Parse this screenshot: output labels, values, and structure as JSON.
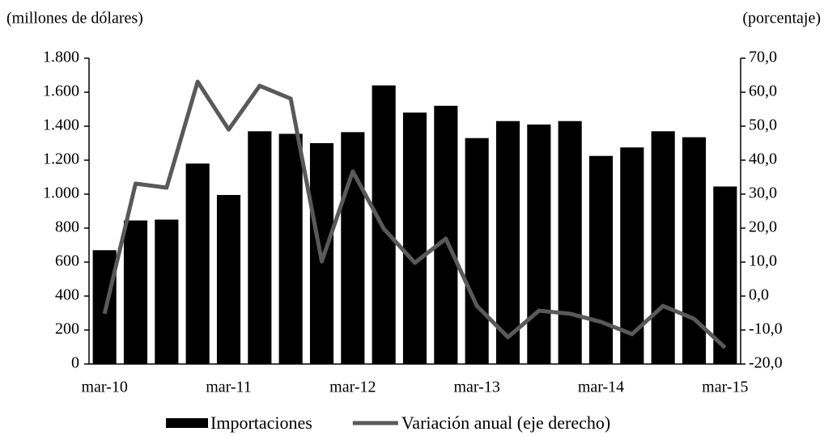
{
  "chart_data": {
    "type": "bar_line",
    "y_label": "(millones  de dólares)",
    "y2_label": "(porcentaje)",
    "categories": [
      "mar-10",
      null,
      null,
      null,
      "mar-11",
      null,
      null,
      null,
      "mar-12",
      null,
      null,
      null,
      "mar-13",
      null,
      null,
      null,
      "mar-14",
      null,
      null,
      null,
      "mar-15"
    ],
    "series": [
      {
        "name": "Importaciones",
        "type": "bar",
        "color": "#000000",
        "values": [
          670,
          845,
          850,
          1180,
          995,
          1370,
          1355,
          1300,
          1365,
          1640,
          1480,
          1520,
          1330,
          1430,
          1410,
          1430,
          1225,
          1275,
          1370,
          1335,
          1045
        ]
      },
      {
        "name": "Variación anual (eje derecho)",
        "type": "line",
        "axis": "y2",
        "color": "#595959",
        "values": [
          -5.2,
          33.1,
          31.9,
          63.1,
          49.0,
          61.9,
          58.1,
          10.2,
          36.7,
          19.8,
          9.8,
          16.9,
          -2.9,
          -12.1,
          -4.3,
          -5.2,
          -7.6,
          -11.2,
          -2.9,
          -6.7,
          -15.2
        ]
      }
    ],
    "ylim": [
      0,
      1800
    ],
    "yticks": [
      0,
      200,
      400,
      600,
      800,
      {
        "value": 1000,
        "label": "1.000"
      },
      {
        "value": 1200,
        "label": "1.200"
      },
      {
        "value": 1400,
        "label": "1.400"
      },
      {
        "value": 1600,
        "label": "1.600"
      },
      {
        "value": 1800,
        "label": "1.800"
      }
    ],
    "y2lim": [
      -20,
      70
    ],
    "y2ticks": [
      {
        "value": -20,
        "label": "-20,0"
      },
      {
        "value": -10,
        "label": "-10,0"
      },
      {
        "value": 0,
        "label": "0,0"
      },
      {
        "value": 10,
        "label": "10,0"
      },
      {
        "value": 20,
        "label": "20,0"
      },
      {
        "value": 30,
        "label": "30,0"
      },
      {
        "value": 40,
        "label": "40,0"
      },
      {
        "value": 50,
        "label": "50,0"
      },
      {
        "value": 60,
        "label": "60,0"
      },
      {
        "value": 70,
        "label": "70,0"
      }
    ],
    "legend": "bottom"
  }
}
